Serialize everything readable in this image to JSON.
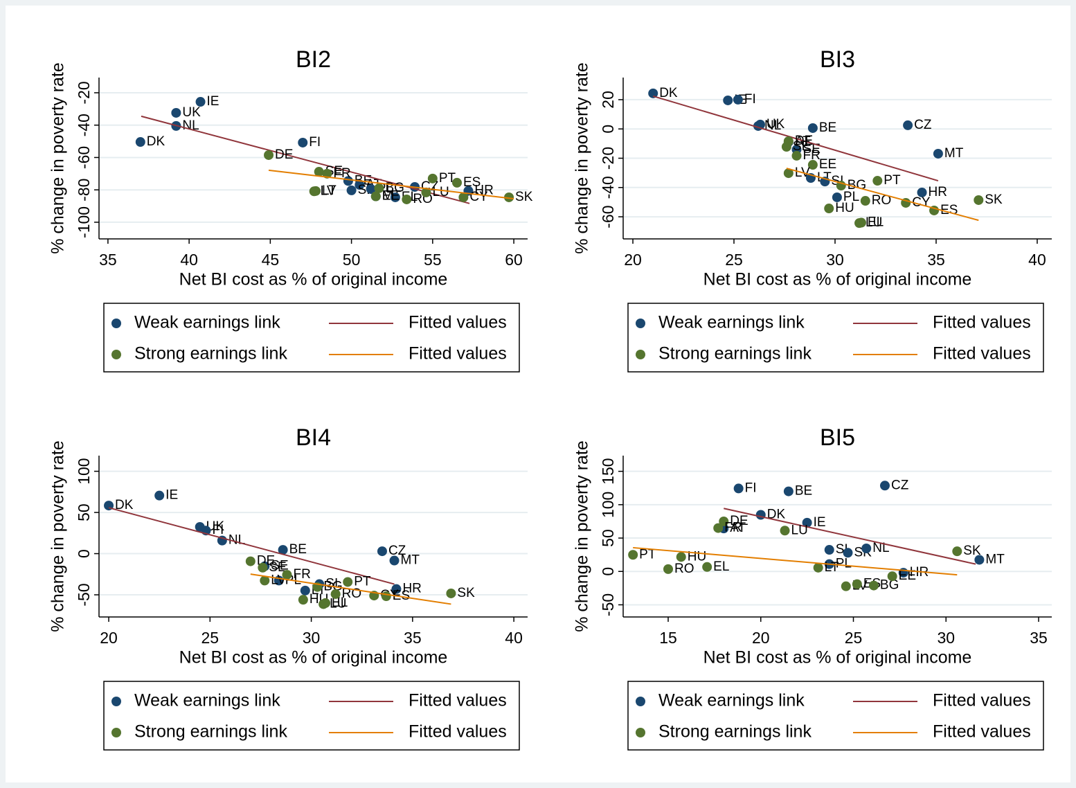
{
  "chart_data": [
    {
      "type": "scatter",
      "title": "BI2",
      "xlabel": "Net BI cost as % of original income",
      "ylabel": "% change in poverty rate",
      "xlim": [
        34.45,
        60.85
      ],
      "ylim": [
        -110.3,
        -10.6
      ],
      "xticks": [
        35,
        40,
        45,
        50,
        55,
        60
      ],
      "yticks": [
        -100,
        -80,
        -60,
        -40,
        -20
      ],
      "grid": true,
      "series": [
        {
          "name": "Weak earnings link",
          "mode": "markers",
          "color": "#1a476f",
          "labels": [
            "DK",
            "UK",
            "NL",
            "IE",
            "FI",
            "BE",
            "AT",
            "SI",
            "PL",
            "MT",
            "EL",
            "CZ",
            "HR"
          ],
          "x": [
            37.0,
            39.2,
            39.2,
            40.7,
            47.0,
            49.8,
            50.5,
            50.0,
            51.2,
            51.5,
            52.7,
            53.9,
            57.2
          ],
          "values": [
            -50.4,
            -32.4,
            -40.5,
            -25.6,
            -50.8,
            -74.5,
            -76.9,
            -80.3,
            -79.5,
            -84,
            -84.6,
            -78.2,
            -80.6
          ]
        },
        {
          "name": "Fitted values",
          "mode": "line",
          "color": "#90353b",
          "x": [
            37.05,
            57.27
          ],
          "values": [
            -34.5,
            -88.4
          ]
        },
        {
          "name": "Strong earnings link",
          "mode": "markers",
          "color": "#55752f",
          "labels": [
            "DE",
            "SE",
            "FR",
            "LT",
            "LV",
            "BG",
            "EE",
            "RO",
            "LU",
            "PT",
            "ES",
            "CY",
            "SK"
          ],
          "x": [
            44.9,
            48.0,
            48.5,
            47.8,
            47.7,
            51.7,
            51.5,
            53.4,
            54.6,
            55.0,
            56.5,
            56.9,
            59.7
          ],
          "values": [
            -58.5,
            -68.8,
            -70,
            -80.7,
            -80.9,
            -79,
            -84,
            -85.9,
            -81.6,
            -73,
            -75.6,
            -84.6,
            -84.6
          ]
        },
        {
          "name": "Fitted values",
          "mode": "line",
          "color": "#e37e00",
          "x": [
            44.9,
            60.0
          ],
          "values": [
            -67.9,
            -85.5
          ]
        }
      ]
    },
    {
      "type": "scatter",
      "title": "BI3",
      "xlabel": "Net BI cost as % of original income",
      "ylabel": "% change in poverty rate",
      "xlim": [
        19.52,
        40.72
      ],
      "ylim": [
        -75.1,
        35.1
      ],
      "xticks": [
        20,
        25,
        30,
        35,
        40
      ],
      "yticks": [
        -60,
        -40,
        -20,
        0,
        20
      ],
      "grid": true,
      "series": [
        {
          "name": "Weak earnings link",
          "mode": "markers",
          "color": "#1a476f",
          "labels": [
            "DK",
            "IE",
            "FI",
            "UK",
            "NL",
            "BE",
            "CZ",
            "SE",
            "AT",
            "MT",
            "LT",
            "SI",
            "PL",
            "HR"
          ],
          "x": [
            21.0,
            24.7,
            25.2,
            26.3,
            26.2,
            28.9,
            33.6,
            28.1,
            27.7,
            35.1,
            28.8,
            29.5,
            30.1,
            34.3
          ],
          "values": [
            24.3,
            19.5,
            20,
            3,
            2,
            0.6,
            2.5,
            -14.1,
            -8.9,
            -16.9,
            -33.5,
            -35.9,
            -46.7,
            -43.4
          ]
        },
        {
          "name": "Fitted values",
          "mode": "line",
          "color": "#90353b",
          "x": [
            21.0,
            35.1
          ],
          "values": [
            22.4,
            -35.4
          ]
        },
        {
          "name": "Strong earnings link",
          "mode": "markers",
          "color": "#55752f",
          "labels": [
            "DE",
            "SE",
            "FR",
            "EE",
            "LV",
            "BG",
            "PT",
            "RO",
            "HU",
            "LU",
            "EL",
            "CY",
            "SK",
            "ES"
          ],
          "x": [
            27.7,
            27.6,
            28.1,
            28.9,
            27.7,
            30.3,
            32.1,
            31.5,
            29.7,
            31.2,
            31.3,
            33.5,
            37.1,
            34.9
          ],
          "values": [
            -8.4,
            -12.2,
            -18.3,
            -24.5,
            -30.2,
            -38.7,
            -35.4,
            -49.1,
            -54.3,
            -64.3,
            -64,
            -50.5,
            -48.6,
            -55.7
          ]
        },
        {
          "name": "Fitted values",
          "mode": "line",
          "color": "#e37e00",
          "x": [
            27.6,
            37.1
          ],
          "values": [
            -26.9,
            -62.4
          ]
        }
      ]
    },
    {
      "type": "scatter",
      "title": "BI4",
      "xlabel": "Net BI cost as % of original income",
      "ylabel": "% change in poverty rate",
      "xlim": [
        19.52,
        40.68
      ],
      "ylim": [
        -76.9,
        119
      ],
      "xticks": [
        20,
        25,
        30,
        35,
        40
      ],
      "yticks": [
        -50,
        0,
        50,
        100
      ],
      "grid": true,
      "series": [
        {
          "name": "Weak earnings link",
          "mode": "markers",
          "color": "#1a476f",
          "labels": [
            "DK",
            "IE",
            "UK",
            "FI",
            "NL",
            "BE",
            "CZ",
            "MT",
            "HR",
            "SE",
            "PL",
            "LT",
            "SI"
          ],
          "x": [
            20.0,
            22.5,
            24.5,
            24.8,
            25.6,
            28.6,
            33.5,
            34.1,
            34.2,
            27.7,
            28.4,
            29.7,
            30.4
          ],
          "values": [
            58.4,
            70.5,
            32.4,
            28,
            15.9,
            4.6,
            2.9,
            -8.4,
            -43,
            -15.3,
            -32.7,
            -44.8,
            -37
          ]
        },
        {
          "name": "Fitted values",
          "mode": "line",
          "color": "#90353b",
          "x": [
            20.0,
            34.1
          ],
          "values": [
            55.8,
            -37
          ]
        },
        {
          "name": "Strong earnings link",
          "mode": "markers",
          "color": "#55752f",
          "labels": [
            "DE",
            "SE",
            "LV",
            "FR",
            "BG",
            "PT",
            "HU",
            "LU",
            "EL",
            "RO",
            "CY",
            "ES",
            "SK"
          ],
          "x": [
            27.0,
            27.6,
            27.7,
            28.8,
            30.3,
            31.8,
            29.6,
            30.6,
            30.7,
            31.2,
            33.1,
            33.7,
            36.9
          ],
          "values": [
            -9.3,
            -17,
            -32.7,
            -25.7,
            -40.5,
            -34.4,
            -56,
            -61.3,
            -60,
            -49.1,
            -50.9,
            -51.7,
            -48.3
          ]
        },
        {
          "name": "Fitted values",
          "mode": "line",
          "color": "#e37e00",
          "x": [
            27.0,
            36.9
          ],
          "values": [
            -24.9,
            -61.3
          ]
        }
      ]
    },
    {
      "type": "scatter",
      "title": "BI5",
      "xlabel": "Net BI cost as % of original income",
      "ylabel": "% change in poverty rate",
      "xlim": [
        12.57,
        35.71
      ],
      "ylim": [
        -68.2,
        173.5
      ],
      "xticks": [
        15,
        20,
        25,
        30,
        35
      ],
      "yticks": [
        -50,
        0,
        50,
        100,
        150
      ],
      "grid": true,
      "series": [
        {
          "name": "Weak earnings link",
          "mode": "markers",
          "color": "#1a476f",
          "labels": [
            "FI",
            "BE",
            "CZ",
            "DK",
            "AT",
            "IE",
            "SI",
            "SK",
            "NL",
            "PL",
            "HR",
            "MT"
          ],
          "x": [
            18.8,
            21.5,
            26.7,
            20.0,
            18.0,
            22.5,
            23.7,
            24.7,
            25.7,
            23.7,
            27.7,
            31.8
          ],
          "values": [
            124.3,
            120,
            128.6,
            84.8,
            64.4,
            73,
            32.4,
            28,
            34.5,
            11,
            -1.9,
            17.4
          ]
        },
        {
          "name": "Fitted values",
          "mode": "line",
          "color": "#90353b",
          "x": [
            18.0,
            31.6
          ],
          "values": [
            94.4,
            11
          ]
        },
        {
          "name": "Strong earnings link",
          "mode": "markers",
          "color": "#55752f",
          "labels": [
            "DE",
            "FR",
            "PT",
            "RO",
            "HU",
            "EL",
            "LU",
            "LT",
            "LV",
            "ES",
            "BG",
            "EE",
            "SK"
          ],
          "x": [
            18.0,
            17.7,
            13.1,
            15.0,
            15.7,
            17.1,
            21.3,
            23.1,
            24.6,
            25.2,
            26.1,
            27.1,
            30.6
          ],
          "values": [
            75,
            65,
            24.9,
            3.5,
            21.7,
            6.7,
            61.2,
            5.6,
            -22.2,
            -19,
            -21.1,
            -7.2,
            30.2
          ]
        },
        {
          "name": "Fitted values",
          "mode": "line",
          "color": "#e37e00",
          "x": [
            13.1,
            30.6
          ],
          "values": [
            35.6,
            -5.1
          ]
        }
      ]
    }
  ]
}
